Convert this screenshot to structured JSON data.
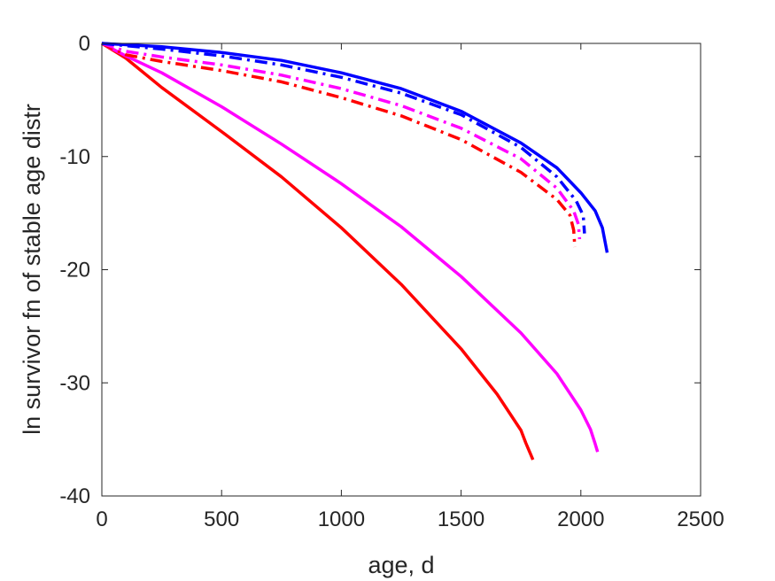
{
  "chart_data": {
    "type": "line",
    "title": "",
    "xlabel": "age, d",
    "ylabel": "ln survivor fn of stable age distr",
    "xlim": [
      0,
      2500
    ],
    "ylim": [
      -40,
      0
    ],
    "xticks": [
      0,
      500,
      1000,
      1500,
      2000,
      2500
    ],
    "yticks": [
      0,
      -10,
      -20,
      -30,
      -40
    ],
    "xtick_labels": [
      "0",
      "500",
      "1000",
      "1500",
      "2000",
      "2500"
    ],
    "ytick_labels": [
      "0",
      "-10",
      "-20",
      "-30",
      "-40"
    ],
    "grid": false,
    "legend": "none",
    "series": [
      {
        "color": "#0000ff",
        "style": "solid",
        "points": [
          [
            0,
            0
          ],
          [
            250,
            -0.3
          ],
          [
            500,
            -0.8
          ],
          [
            750,
            -1.5
          ],
          [
            1000,
            -2.6
          ],
          [
            1250,
            -4.0
          ],
          [
            1500,
            -6.0
          ],
          [
            1750,
            -8.8
          ],
          [
            1900,
            -11.0
          ],
          [
            2000,
            -13.2
          ],
          [
            2060,
            -14.8
          ],
          [
            2090,
            -16.3
          ],
          [
            2110,
            -18.5
          ]
        ]
      },
      {
        "color": "#0000ff",
        "style": "dashdot",
        "points": [
          [
            0,
            0
          ],
          [
            250,
            -0.5
          ],
          [
            500,
            -1.1
          ],
          [
            750,
            -1.9
          ],
          [
            1000,
            -3.0
          ],
          [
            1250,
            -4.4
          ],
          [
            1500,
            -6.3
          ],
          [
            1750,
            -9.2
          ],
          [
            1900,
            -11.8
          ],
          [
            1980,
            -13.9
          ],
          [
            2010,
            -15.2
          ],
          [
            2015,
            -16.8
          ]
        ]
      },
      {
        "color": "#ff00ff",
        "style": "dashdot",
        "points": [
          [
            0,
            0
          ],
          [
            100,
            -0.7
          ],
          [
            250,
            -1.2
          ],
          [
            500,
            -1.9
          ],
          [
            750,
            -2.8
          ],
          [
            1000,
            -4.0
          ],
          [
            1250,
            -5.5
          ],
          [
            1500,
            -7.5
          ],
          [
            1750,
            -10.2
          ],
          [
            1900,
            -12.8
          ],
          [
            1970,
            -14.8
          ],
          [
            1990,
            -16.0
          ],
          [
            1995,
            -17.3
          ]
        ]
      },
      {
        "color": "#ff0000",
        "style": "dashdot",
        "points": [
          [
            0,
            0
          ],
          [
            100,
            -1.0
          ],
          [
            250,
            -1.6
          ],
          [
            500,
            -2.4
          ],
          [
            750,
            -3.4
          ],
          [
            1000,
            -4.8
          ],
          [
            1250,
            -6.4
          ],
          [
            1500,
            -8.5
          ],
          [
            1750,
            -11.4
          ],
          [
            1900,
            -13.8
          ],
          [
            1955,
            -15.2
          ],
          [
            1970,
            -16.5
          ],
          [
            1975,
            -18.0
          ]
        ]
      },
      {
        "color": "#ff00ff",
        "style": "solid",
        "points": [
          [
            0,
            0
          ],
          [
            100,
            -1.1
          ],
          [
            250,
            -2.6
          ],
          [
            500,
            -5.6
          ],
          [
            750,
            -8.9
          ],
          [
            1000,
            -12.4
          ],
          [
            1250,
            -16.2
          ],
          [
            1500,
            -20.6
          ],
          [
            1750,
            -25.6
          ],
          [
            1900,
            -29.2
          ],
          [
            2000,
            -32.4
          ],
          [
            2040,
            -34.1
          ],
          [
            2060,
            -35.4
          ],
          [
            2070,
            -36.1
          ]
        ]
      },
      {
        "color": "#ff0000",
        "style": "solid",
        "points": [
          [
            0,
            0
          ],
          [
            100,
            -1.3
          ],
          [
            250,
            -3.9
          ],
          [
            500,
            -7.8
          ],
          [
            750,
            -11.8
          ],
          [
            1000,
            -16.3
          ],
          [
            1250,
            -21.3
          ],
          [
            1500,
            -27.0
          ],
          [
            1650,
            -31.0
          ],
          [
            1750,
            -34.2
          ],
          [
            1770,
            -35.3
          ],
          [
            1790,
            -36.3
          ],
          [
            1800,
            -36.8
          ]
        ]
      }
    ]
  }
}
